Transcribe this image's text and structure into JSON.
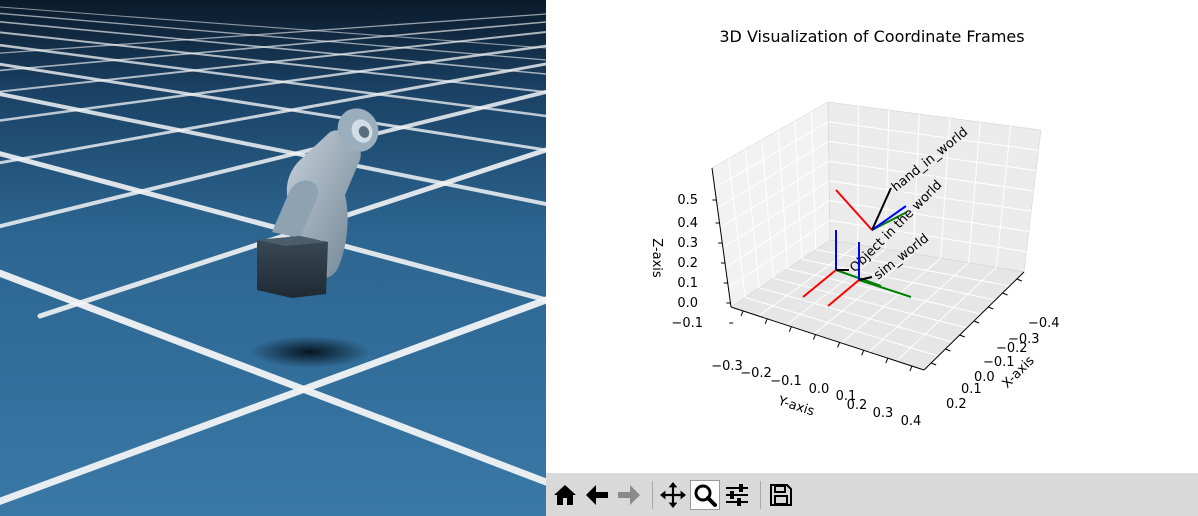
{
  "simulation": {
    "floor_color": "#2e6891",
    "grid_line_color": "#f2f4f6",
    "sky_color": "#0c1c2c"
  },
  "plot": {
    "title": "3D Visualization of Coordinate Frames",
    "axes": {
      "xlabel": "X-axis",
      "ylabel": "Y-axis",
      "zlabel": "Z-axis",
      "x_ticks": [
        "−0.4",
        "−0.3",
        "−0.2",
        "−0.1",
        "0.0",
        "0.1",
        "0.2"
      ],
      "y_ticks": [
        "−0.3",
        "−0.2",
        "−0.1",
        "0.0",
        "0.1",
        "0.2",
        "0.3",
        "0.4"
      ],
      "z_ticks": [
        "0.5",
        "0.4",
        "0.3",
        "0.2",
        "0.1",
        "0.0",
        "−0.1"
      ]
    },
    "frame_labels": {
      "hand": "hand_in_world",
      "object": "Object in the world",
      "sim": "sim_world"
    },
    "axis_colors": {
      "x": "#ff0000",
      "y": "#008000",
      "z": "#0000ff",
      "label_line": "#000000"
    }
  },
  "toolbar": {
    "buttons": [
      {
        "name": "home",
        "icon": "home-icon",
        "active": false
      },
      {
        "name": "back",
        "icon": "back-arrow-icon",
        "active": false
      },
      {
        "name": "forward",
        "icon": "forward-arrow-icon",
        "active": false
      },
      {
        "name": "pan",
        "icon": "pan-move-icon",
        "active": false
      },
      {
        "name": "zoom",
        "icon": "zoom-magnifier-icon",
        "active": true
      },
      {
        "name": "configure-subplots",
        "icon": "sliders-icon",
        "active": false
      },
      {
        "name": "save",
        "icon": "save-floppy-icon",
        "active": false
      }
    ]
  }
}
